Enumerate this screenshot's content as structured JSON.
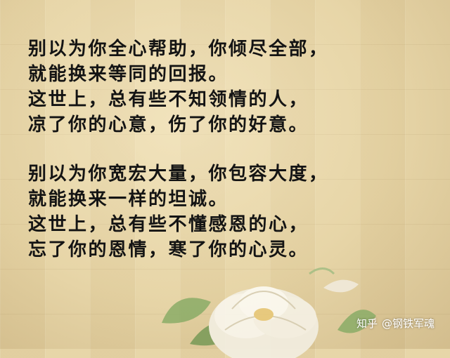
{
  "poem": {
    "stanza1": [
      "别以为你全心帮助，你倾尽全部，",
      "就能换来等同的回报。",
      "这世上，总有些不知领情的人，",
      "凉了你的心意，伤了你的好意。"
    ],
    "stanza2": [
      "别以为你宽宏大量，你包容大度，",
      "就能换来一样的坦诚。",
      "这世上，总有些不懂感恩的心，",
      "忘了你的恩情，寒了你的心灵。"
    ]
  },
  "watermark": {
    "site": "知乎",
    "author": "@钢铁军魂"
  }
}
